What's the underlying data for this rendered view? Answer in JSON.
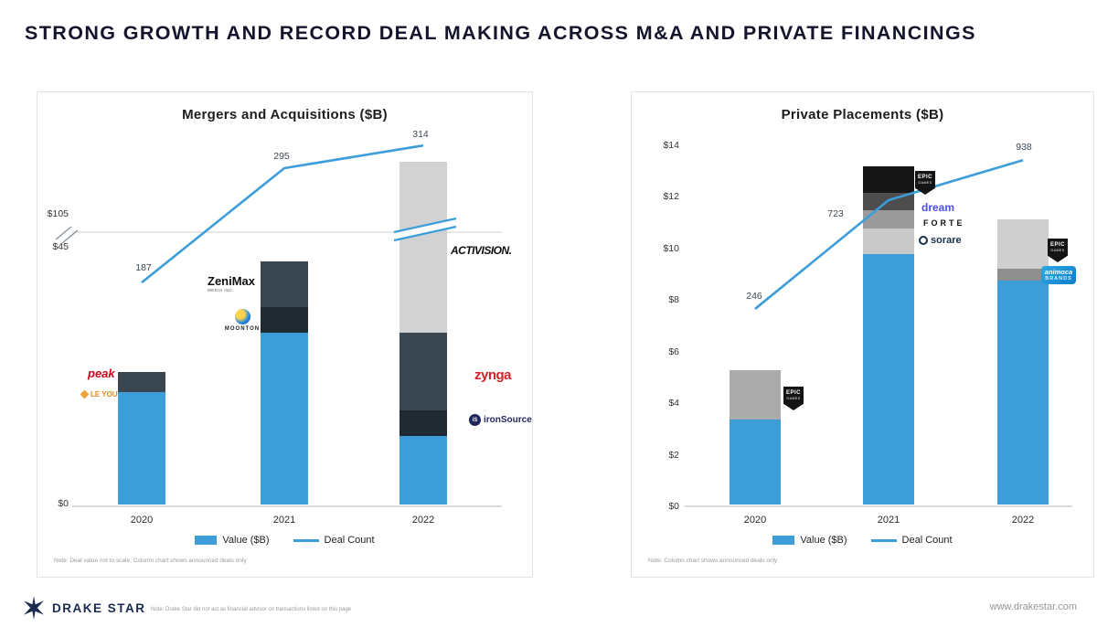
{
  "page": {
    "title": "STRONG GROWTH AND RECORD DEAL MAKING ACROSS M&A AND PRIVATE FINANCINGS"
  },
  "colors": {
    "accent_blue": "#3d9dd8",
    "dark_slate": "#3a4750",
    "darker_navy": "#1f2a33",
    "light_gray": "#d2d2d2",
    "axis_gray": "#b5b5b5"
  },
  "footer": {
    "brand": "DRAKE STAR",
    "note": "Note: Drake Star did not act as financial advisor on transactions listed on this page",
    "website": "www.drakestar.com"
  },
  "chart_data": [
    {
      "type": "bar",
      "subtype": "stacked-column-with-line",
      "title": "Mergers and Acquisitions ($B)",
      "categories": [
        "2020",
        "2021",
        "2022"
      ],
      "y_axis_labels": [
        "$105",
        "$45",
        "$0"
      ],
      "axis_break": true,
      "legend": [
        "Value ($B)",
        "Deal Count"
      ],
      "note": "Note: Deal value not to scale; Column chart shows announced deals only",
      "line_series": {
        "name": "Deal Count",
        "values": [
          187,
          295,
          314
        ],
        "y_pct": [
          59.3,
          89.6,
          95.6
        ]
      },
      "bars": [
        {
          "category": "2020",
          "segments": [
            {
              "name": "Value ($B)",
              "color": "#3d9dd8",
              "h_pct": 29.8
            },
            {
              "name": "Peak and Leyou deals",
              "color": "#3a4750",
              "h_pct": 5.3
            }
          ]
        },
        {
          "category": "2021",
          "segments": [
            {
              "name": "Value ($B)",
              "color": "#3d9dd8",
              "h_pct": 45.5
            },
            {
              "name": "Moonton deal",
              "color": "#1f2a33",
              "h_pct": 6.8
            },
            {
              "name": "ZeniMax deal",
              "color": "#3a4750",
              "h_pct": 12.1
            }
          ]
        },
        {
          "category": "2022",
          "segments": [
            {
              "name": "Value ($B)",
              "color": "#3d9dd8",
              "h_pct": 18.2
            },
            {
              "name": "ironSource deal",
              "color": "#1f2a33",
              "h_pct": 6.8
            },
            {
              "name": "Zynga deal",
              "color": "#3a4750",
              "h_pct": 20.6
            },
            {
              "name": "Activision deal",
              "color": "#d2d2d2",
              "h_pct": 45.3
            }
          ]
        }
      ],
      "logo_labels": {
        "peak": "peak",
        "leyou": "LE YOU",
        "zenimax": "ZeniMax",
        "zenimax_sub": "MEDIA INC.",
        "moonton": "MOONTON",
        "activision": "ACTIVISION.",
        "zynga": "zynga",
        "ironsource": "ironSource",
        "ironsource_icon": "iS"
      }
    },
    {
      "type": "bar",
      "subtype": "stacked-column-with-line",
      "title": "Private Placements ($B)",
      "categories": [
        "2020",
        "2021",
        "2022"
      ],
      "y_axis_max": 14,
      "y_axis_labels": [
        "$0",
        "$2",
        "$4",
        "$6",
        "$8",
        "$10",
        "$12",
        "$14"
      ],
      "legend": [
        "Value ($B)",
        "Deal Count"
      ],
      "note": "Note: Column chart shows announced deals only",
      "line_series": {
        "name": "Deal Count",
        "values": [
          246,
          723,
          938
        ],
        "y_pct": [
          54.7,
          84.8,
          95.9
        ]
      },
      "bars": [
        {
          "category": "2020",
          "segments": [
            {
              "name": "Value ($B)",
              "color": "#3d9dd8",
              "value": 3.3
            },
            {
              "name": "Epic Games raise",
              "color": "#ababab",
              "value": 1.9
            }
          ]
        },
        {
          "category": "2021",
          "segments": [
            {
              "name": "Value ($B)",
              "color": "#3d9dd8",
              "value": 9.7
            },
            {
              "name": "Sorare raise",
              "color": "#c9c9c9",
              "value": 1.0
            },
            {
              "name": "Forte raise",
              "color": "#9a9a9a",
              "value": 0.7
            },
            {
              "name": "Dream raise",
              "color": "#4d4d4d",
              "value": 0.7
            },
            {
              "name": "Epic Games raise",
              "color": "#161616",
              "value": 1.0
            }
          ]
        },
        {
          "category": "2022",
          "segments": [
            {
              "name": "Value ($B)",
              "color": "#3d9dd8",
              "value": 8.7
            },
            {
              "name": "Animoca Brands raise",
              "color": "#8f8f8f",
              "value": 0.45
            },
            {
              "name": "Epic Games raise",
              "color": "#cfcfcf",
              "value": 1.9
            }
          ]
        }
      ],
      "logo_labels": {
        "epic_line1": "EPIC",
        "epic_line2": "GAMES",
        "dream": "dream",
        "forte": "FORTE",
        "sorare": "sorare",
        "animoca_line1": "animoca",
        "animoca_line2": "BRANDS"
      }
    }
  ]
}
